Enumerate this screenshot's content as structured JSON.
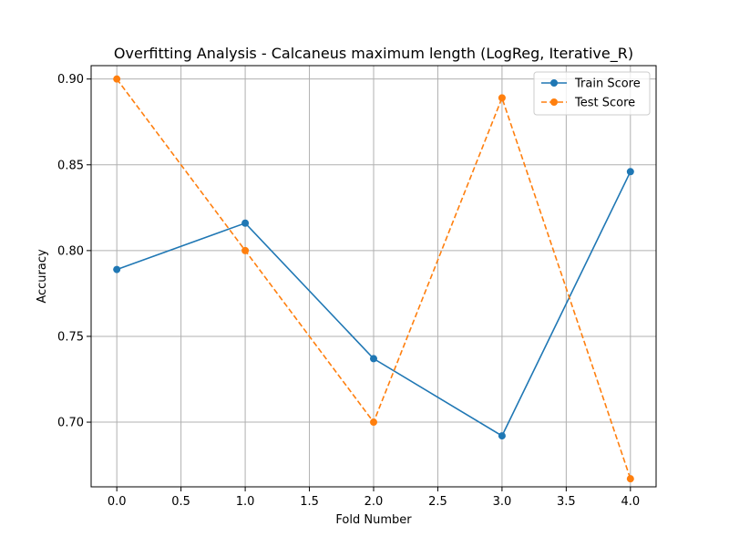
{
  "chart_data": {
    "type": "line",
    "title": "Overfitting Analysis - Calcaneus maximum length (LogReg, Iterative_R)",
    "xlabel": "Fold Number",
    "ylabel": "Accuracy",
    "x": [
      0,
      1,
      2,
      3,
      4
    ],
    "xlim": [
      -0.2,
      4.2
    ],
    "ylim": [
      0.6623,
      0.9078
    ],
    "xticks": [
      0.0,
      0.5,
      1.0,
      1.5,
      2.0,
      2.5,
      3.0,
      3.5,
      4.0
    ],
    "xtick_labels": [
      "0.0",
      "0.5",
      "1.0",
      "1.5",
      "2.0",
      "2.5",
      "3.0",
      "3.5",
      "4.0"
    ],
    "yticks": [
      0.7,
      0.75,
      0.8,
      0.85,
      0.9
    ],
    "ytick_labels": [
      "0.70",
      "0.75",
      "0.80",
      "0.85",
      "0.90"
    ],
    "grid": true,
    "legend_position": "top-right",
    "series": [
      {
        "name": "Train Score",
        "values": [
          0.789,
          0.816,
          0.737,
          0.692,
          0.846
        ],
        "color": "#1f77b4",
        "style": "solid",
        "marker": "circle"
      },
      {
        "name": "Test Score",
        "values": [
          0.9,
          0.8,
          0.7,
          0.889,
          0.667
        ],
        "color": "#ff7f0e",
        "style": "dashed",
        "marker": "circle"
      }
    ]
  }
}
